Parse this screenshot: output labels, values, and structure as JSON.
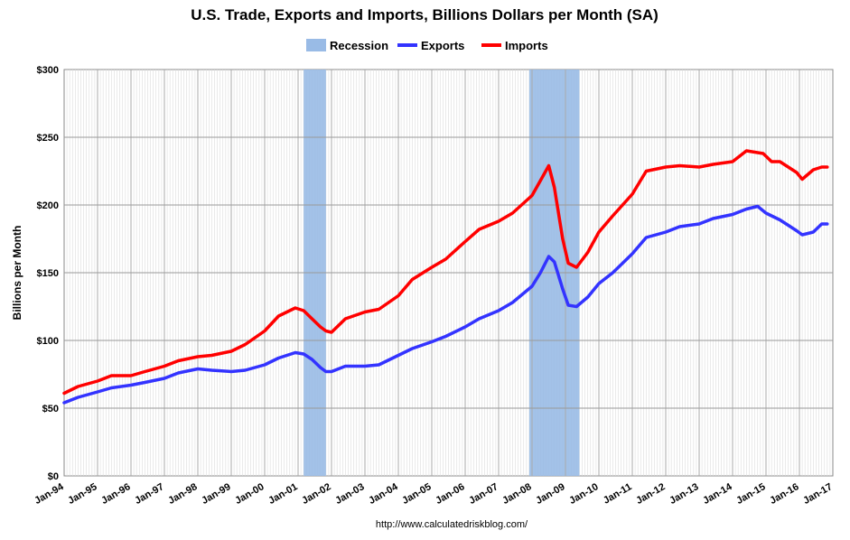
{
  "chart_data": {
    "type": "line",
    "title": "U.S. Trade, Exports and Imports, Billions Dollars per Month (SA)",
    "ylabel": "Billions per Month",
    "source": "http://www.calculatedriskblog.com/",
    "ylim": [
      0,
      300
    ],
    "yticks": [
      "$0",
      "$50",
      "$100",
      "$150",
      "$200",
      "$250",
      "$300"
    ],
    "xticks": [
      "Jan-94",
      "Jan-95",
      "Jan-96",
      "Jan-97",
      "Jan-98",
      "Jan-99",
      "Jan-00",
      "Jan-01",
      "Jan-02",
      "Jan-03",
      "Jan-04",
      "Jan-05",
      "Jan-06",
      "Jan-07",
      "Jan-08",
      "Jan-09",
      "Jan-10",
      "Jan-11",
      "Jan-12",
      "Jan-13",
      "Jan-14",
      "Jan-15",
      "Jan-16",
      "Jan-17"
    ],
    "xrange": [
      "1994-01",
      "2017-01"
    ],
    "grid": true,
    "legend": "top-center",
    "recessions": [
      {
        "start": "2001-03",
        "end": "2001-11"
      },
      {
        "start": "2007-12",
        "end": "2009-06"
      }
    ],
    "series": [
      {
        "name": "Exports",
        "color": "#3333ff",
        "points": [
          [
            "1994-01",
            54
          ],
          [
            "1994-06",
            58
          ],
          [
            "1995-01",
            62
          ],
          [
            "1995-06",
            65
          ],
          [
            "1996-01",
            67
          ],
          [
            "1996-06",
            69
          ],
          [
            "1997-01",
            72
          ],
          [
            "1997-06",
            76
          ],
          [
            "1998-01",
            79
          ],
          [
            "1998-06",
            78
          ],
          [
            "1999-01",
            77
          ],
          [
            "1999-06",
            78
          ],
          [
            "2000-01",
            82
          ],
          [
            "2000-06",
            87
          ],
          [
            "2000-12",
            91
          ],
          [
            "2001-03",
            90
          ],
          [
            "2001-06",
            86
          ],
          [
            "2001-09",
            80
          ],
          [
            "2001-11",
            77
          ],
          [
            "2002-01",
            77
          ],
          [
            "2002-06",
            81
          ],
          [
            "2003-01",
            81
          ],
          [
            "2003-06",
            82
          ],
          [
            "2004-01",
            89
          ],
          [
            "2004-06",
            94
          ],
          [
            "2005-01",
            99
          ],
          [
            "2005-06",
            103
          ],
          [
            "2006-01",
            110
          ],
          [
            "2006-06",
            116
          ],
          [
            "2007-01",
            122
          ],
          [
            "2007-06",
            128
          ],
          [
            "2008-01",
            140
          ],
          [
            "2008-04",
            150
          ],
          [
            "2008-07",
            162
          ],
          [
            "2008-09",
            158
          ],
          [
            "2008-12",
            138
          ],
          [
            "2009-02",
            126
          ],
          [
            "2009-05",
            125
          ],
          [
            "2009-09",
            132
          ],
          [
            "2010-01",
            142
          ],
          [
            "2010-06",
            150
          ],
          [
            "2011-01",
            164
          ],
          [
            "2011-06",
            176
          ],
          [
            "2012-01",
            180
          ],
          [
            "2012-06",
            184
          ],
          [
            "2013-01",
            186
          ],
          [
            "2013-06",
            190
          ],
          [
            "2014-01",
            193
          ],
          [
            "2014-06",
            197
          ],
          [
            "2014-10",
            199
          ],
          [
            "2015-01",
            194
          ],
          [
            "2015-06",
            189
          ],
          [
            "2015-12",
            181
          ],
          [
            "2016-02",
            178
          ],
          [
            "2016-06",
            180
          ],
          [
            "2016-09",
            186
          ],
          [
            "2016-11",
            186
          ]
        ]
      },
      {
        "name": "Imports",
        "color": "#ff0000",
        "points": [
          [
            "1994-01",
            61
          ],
          [
            "1994-06",
            66
          ],
          [
            "1995-01",
            70
          ],
          [
            "1995-06",
            74
          ],
          [
            "1996-01",
            74
          ],
          [
            "1996-06",
            77
          ],
          [
            "1997-01",
            81
          ],
          [
            "1997-06",
            85
          ],
          [
            "1998-01",
            88
          ],
          [
            "1998-06",
            89
          ],
          [
            "1999-01",
            92
          ],
          [
            "1999-06",
            97
          ],
          [
            "2000-01",
            107
          ],
          [
            "2000-06",
            118
          ],
          [
            "2000-12",
            124
          ],
          [
            "2001-03",
            122
          ],
          [
            "2001-06",
            116
          ],
          [
            "2001-09",
            110
          ],
          [
            "2001-11",
            107
          ],
          [
            "2002-01",
            106
          ],
          [
            "2002-06",
            116
          ],
          [
            "2003-01",
            121
          ],
          [
            "2003-06",
            123
          ],
          [
            "2004-01",
            133
          ],
          [
            "2004-06",
            145
          ],
          [
            "2005-01",
            154
          ],
          [
            "2005-06",
            160
          ],
          [
            "2006-01",
            173
          ],
          [
            "2006-06",
            182
          ],
          [
            "2007-01",
            188
          ],
          [
            "2007-06",
            194
          ],
          [
            "2008-01",
            207
          ],
          [
            "2008-04",
            218
          ],
          [
            "2008-07",
            229
          ],
          [
            "2008-09",
            213
          ],
          [
            "2008-12",
            175
          ],
          [
            "2009-02",
            157
          ],
          [
            "2009-05",
            154
          ],
          [
            "2009-09",
            165
          ],
          [
            "2010-01",
            180
          ],
          [
            "2010-06",
            192
          ],
          [
            "2011-01",
            208
          ],
          [
            "2011-06",
            225
          ],
          [
            "2012-01",
            228
          ],
          [
            "2012-06",
            229
          ],
          [
            "2013-01",
            228
          ],
          [
            "2013-06",
            230
          ],
          [
            "2014-01",
            232
          ],
          [
            "2014-06",
            240
          ],
          [
            "2014-12",
            238
          ],
          [
            "2015-03",
            232
          ],
          [
            "2015-06",
            232
          ],
          [
            "2015-12",
            224
          ],
          [
            "2016-02",
            219
          ],
          [
            "2016-06",
            226
          ],
          [
            "2016-09",
            228
          ],
          [
            "2016-11",
            228
          ]
        ]
      }
    ],
    "recession_label": "Recession",
    "recession_color": "#99bbe6"
  }
}
